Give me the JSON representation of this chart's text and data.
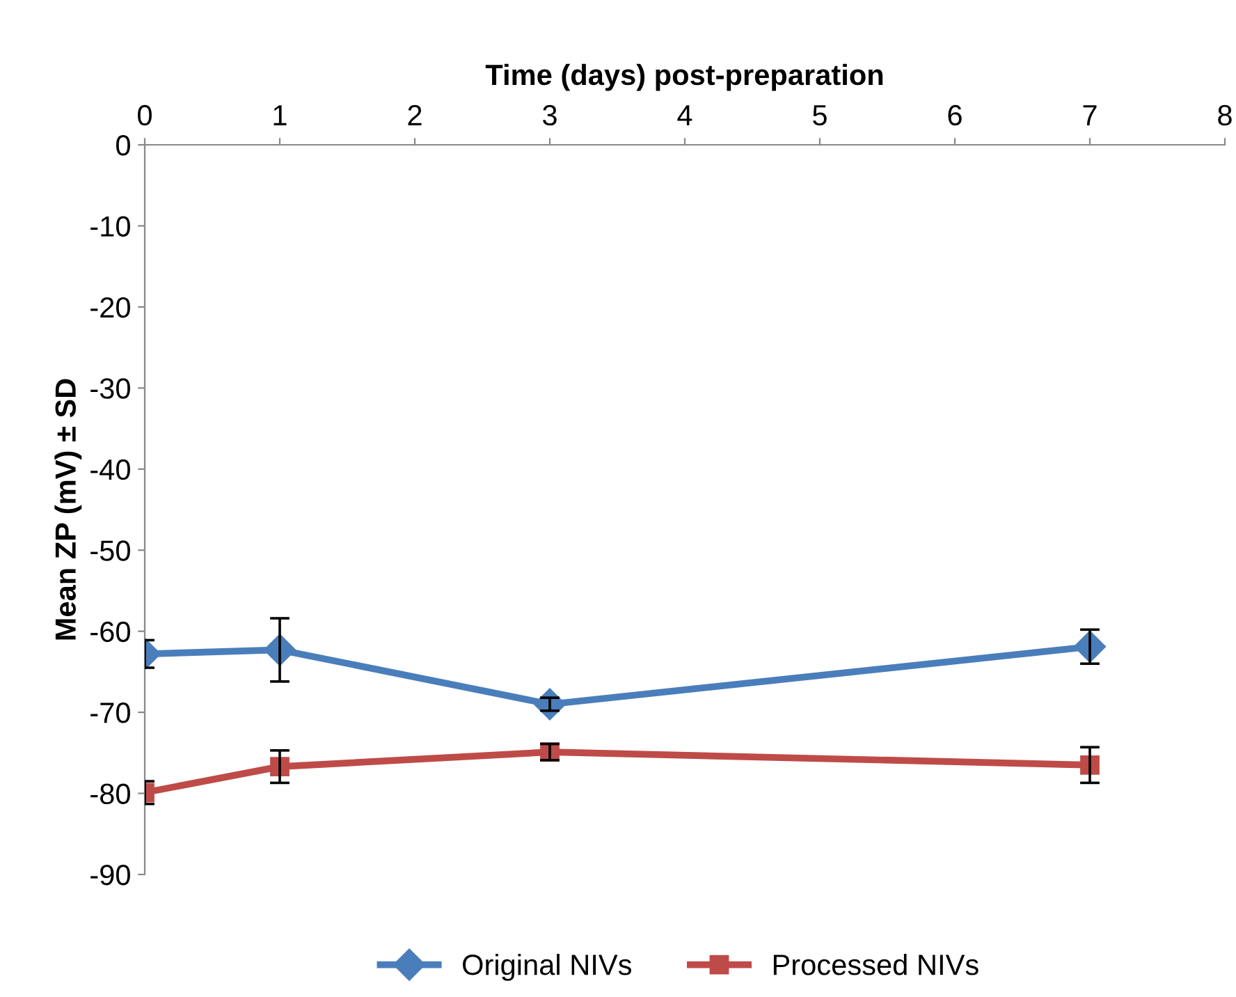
{
  "chart_data": {
    "type": "line",
    "xlabel": "Time (days) post-preparation",
    "ylabel": "Mean ZP (mV) ± SD",
    "x": [
      0,
      1,
      3,
      7
    ],
    "series": [
      {
        "name": "Original NIVs",
        "color": "#4a7ebb",
        "marker": "diamond",
        "values": [
          -62.8,
          -62.3,
          -69.0,
          -61.9
        ],
        "errors": [
          1.7,
          3.9,
          0.8,
          2.1
        ]
      },
      {
        "name": "Processed NIVs",
        "color": "#be4b48",
        "marker": "square",
        "values": [
          -79.9,
          -76.7,
          -74.9,
          -76.5
        ],
        "errors": [
          1.4,
          2.0,
          1.0,
          2.2
        ]
      }
    ],
    "xlim": [
      0,
      8
    ],
    "xticks": [
      0,
      1,
      2,
      3,
      4,
      5,
      6,
      7,
      8
    ],
    "ylim": [
      -90,
      0
    ],
    "yticks": [
      -90,
      -80,
      -70,
      -60,
      -50,
      -40,
      -30,
      -20,
      -10,
      0
    ],
    "grid": false,
    "legend": "bottom",
    "line_style": "solid"
  }
}
